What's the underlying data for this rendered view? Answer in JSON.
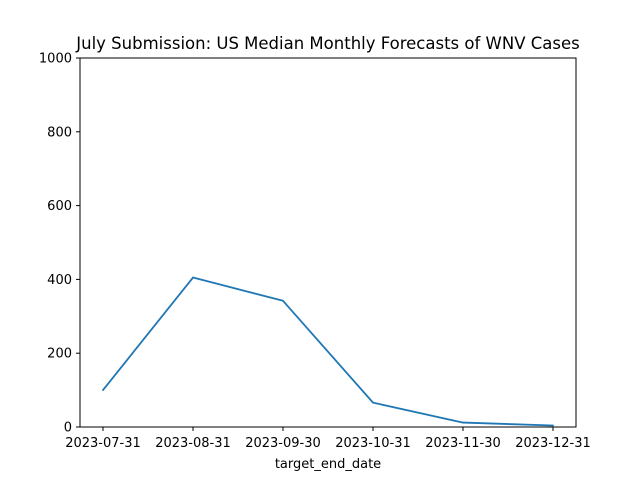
{
  "chart_data": {
    "type": "line",
    "title": "July Submission: US Median Monthly Forecasts of WNV Cases",
    "xlabel": "target_end_date",
    "ylabel": "",
    "categories": [
      "2023-07-31",
      "2023-08-31",
      "2023-09-30",
      "2023-10-31",
      "2023-11-30",
      "2023-12-31"
    ],
    "series": [
      {
        "values": [
          100,
          405,
          342,
          66,
          12,
          4
        ]
      }
    ],
    "ylim": [
      0,
      1000
    ],
    "yticks": [
      0,
      200,
      400,
      600,
      800,
      1000
    ],
    "grid": false,
    "line_color": "#1f77b4"
  }
}
